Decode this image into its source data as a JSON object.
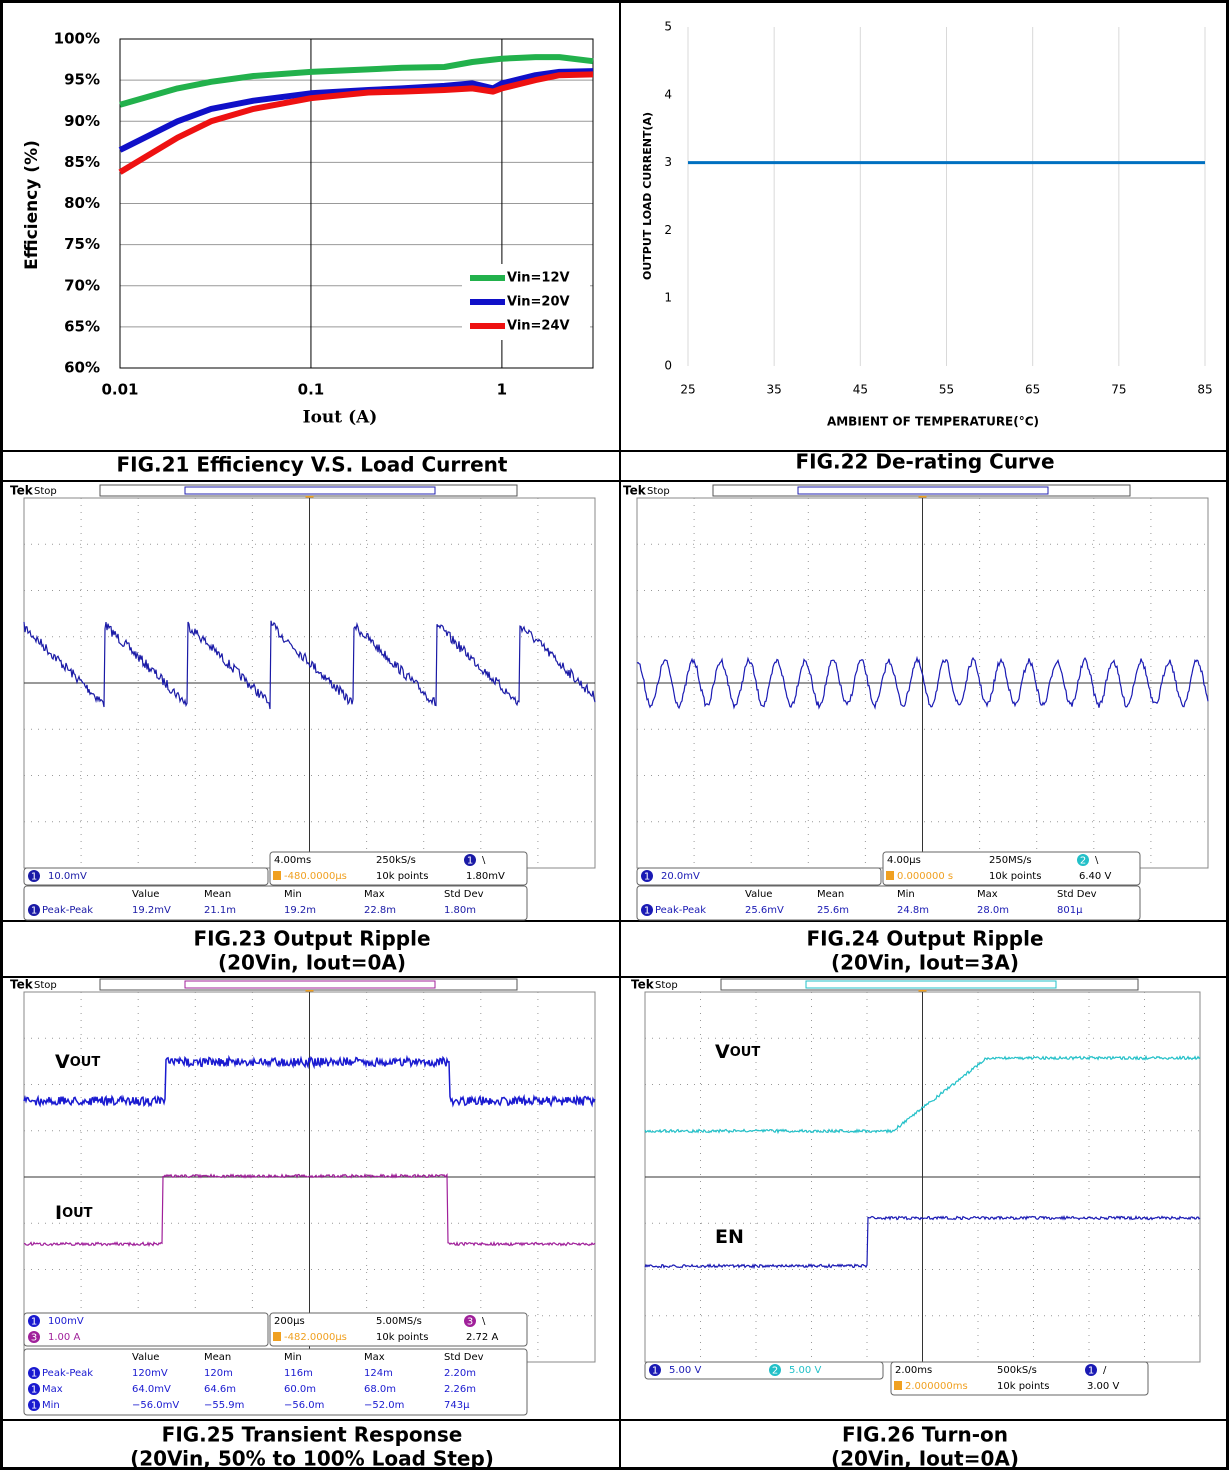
{
  "chart_data": [
    {
      "type": "line",
      "caption": "FIG.21 Efficiency V.S. Load Current",
      "x_label": "Iout (A)",
      "y_label": "Efficiency (%)",
      "x_scale": "log",
      "x": [
        0.01,
        0.02,
        0.03,
        0.05,
        0.1,
        0.2,
        0.3,
        0.5,
        0.7,
        0.9,
        1,
        1.5,
        2,
        3
      ],
      "xlim": [
        0.01,
        3
      ],
      "xticks": [
        0.01,
        0.1,
        1
      ],
      "ylim": [
        60,
        100
      ],
      "yticks": [
        {
          "value": 60,
          "label": "60%"
        },
        {
          "value": 65,
          "label": "65%"
        },
        {
          "value": 70,
          "label": "70%"
        },
        {
          "value": 75,
          "label": "75%"
        },
        {
          "value": 80,
          "label": "80%"
        },
        {
          "value": 85,
          "label": "85%"
        },
        {
          "value": 90,
          "label": "90%"
        },
        {
          "value": 95,
          "label": "95%"
        },
        {
          "value": 100,
          "label": "100%"
        }
      ],
      "grid": true,
      "legend": "lower right",
      "series": [
        {
          "name": "Vin=12V",
          "color": "#22b14c",
          "values": [
            92,
            94,
            94.8,
            95.5,
            96,
            96.3,
            96.5,
            96.6,
            97.2,
            97.5,
            97.6,
            97.8,
            97.8,
            97.3
          ]
        },
        {
          "name": "Vin=20V",
          "color": "#1010c8",
          "values": [
            86.5,
            90,
            91.5,
            92.5,
            93.4,
            93.8,
            94,
            94.3,
            94.6,
            94,
            94.6,
            95.6,
            96,
            96.1
          ]
        },
        {
          "name": "Vin=24V",
          "color": "#ee1111",
          "values": [
            83.8,
            88,
            90,
            91.5,
            92.8,
            93.5,
            93.6,
            93.8,
            94,
            93.6,
            94,
            95,
            95.6,
            95.7
          ]
        }
      ]
    },
    {
      "type": "line",
      "caption": "FIG.22 De-rating Curve",
      "x_label": "AMBIENT OF TEMPERATURE(°C)",
      "y_label": "OUTPUT LOAD CURRENT(A)",
      "x": [
        25,
        85
      ],
      "values": [
        3,
        3
      ],
      "color": "#0070c0",
      "xlim": [
        25,
        85
      ],
      "xticks": [
        25,
        35,
        45,
        55,
        65,
        75,
        85
      ],
      "ylim": [
        0,
        5
      ],
      "yticks": [
        0,
        1,
        2,
        3,
        4,
        5
      ],
      "grid": "x"
    }
  ],
  "scopes": [
    {
      "caption": [
        "FIG.23 Output Ripple",
        "(20Vin, Iout=0A)"
      ],
      "brand": "Tek",
      "state": "Stop",
      "channels": [
        {
          "ch": "1",
          "scale": "10.0mV",
          "color": "#1a1aa6"
        }
      ],
      "timebase": {
        "time_div": "4.00ms",
        "sample_rate": "250kS/s",
        "trig_ch": "1",
        "trig_slope": "\\",
        "delay": "-480.0000µs",
        "points": "10k points",
        "trig_level": "1.80mV"
      },
      "measure": {
        "header": [
          "Value",
          "Mean",
          "Min",
          "Max",
          "Std Dev"
        ],
        "rows": [
          {
            "ch": "1",
            "name": "Peak-Peak",
            "cells": [
              "19.2mV",
              "21.1m",
              "19.2m",
              "22.8m",
              "1.80m"
            ]
          }
        ]
      }
    },
    {
      "caption": [
        "FIG.24 Output Ripple",
        "(20Vin, Iout=3A)"
      ],
      "brand": "Tek",
      "state": "Stop",
      "channels": [
        {
          "ch": "1",
          "scale": "20.0mV",
          "color": "#1a1ab4"
        }
      ],
      "timebase": {
        "time_div": "4.00µs",
        "sample_rate": "250MS/s",
        "trig_ch": "2",
        "trig_slope": "\\",
        "delay": "0.000000 s",
        "points": "10k points",
        "trig_level": "6.40 V"
      },
      "measure": {
        "header": [
          "Value",
          "Mean",
          "Min",
          "Max",
          "Std Dev"
        ],
        "rows": [
          {
            "ch": "1",
            "name": "Peak-Peak",
            "cells": [
              "25.6mV",
              "25.6m",
              "24.8m",
              "28.0m",
              "801µ"
            ]
          }
        ]
      }
    },
    {
      "caption": [
        "FIG.25 Transient Response",
        "(20Vin, 50% to 100% Load Step)"
      ],
      "brand": "Tek",
      "state": "Stop",
      "trace_labels": [
        {
          "main": "V",
          "sub": "OUT"
        },
        {
          "main": "I",
          "sub": "OUT"
        }
      ],
      "channels": [
        {
          "ch": "1",
          "scale": "100mV",
          "color": "#1a1ad0"
        },
        {
          "ch": "3",
          "scale": "1.00 A",
          "color": "#a0209a"
        }
      ],
      "timebase": {
        "time_div": "200µs",
        "sample_rate": "5.00MS/s",
        "trig_ch": "3",
        "trig_slope": "\\",
        "delay": "-482.0000µs",
        "points": "10k points",
        "trig_level": "2.72 A"
      },
      "measure": {
        "header": [
          "Value",
          "Mean",
          "Min",
          "Max",
          "Std Dev"
        ],
        "rows": [
          {
            "ch": "1",
            "name": "Peak-Peak",
            "cells": [
              "120mV",
              "120m",
              "116m",
              "124m",
              "2.20m"
            ]
          },
          {
            "ch": "1",
            "name": "Max",
            "cells": [
              "64.0mV",
              "64.6m",
              "60.0m",
              "68.0m",
              "2.26m"
            ]
          },
          {
            "ch": "1",
            "name": "Min",
            "cells": [
              "−56.0mV",
              "−55.9m",
              "−56.0m",
              "−52.0m",
              "743µ"
            ]
          }
        ]
      }
    },
    {
      "caption": [
        "FIG.26 Turn-on",
        "(20Vin, Iout=0A)"
      ],
      "brand": "Tek",
      "state": "Stop",
      "trace_labels": [
        {
          "main": "V",
          "sub": "OUT"
        },
        {
          "main": "EN"
        }
      ],
      "channels": [
        {
          "ch": "1",
          "scale": "5.00 V",
          "color": "#1a1ab4"
        },
        {
          "ch": "2",
          "scale": "5.00 V",
          "color": "#22c0c8"
        }
      ],
      "timebase": {
        "time_div": "2.00ms",
        "sample_rate": "500kS/s",
        "trig_ch": "1",
        "trig_slope": "/",
        "delay": "2.000000ms",
        "points": "10k points",
        "trig_level": "3.00 V"
      }
    }
  ]
}
